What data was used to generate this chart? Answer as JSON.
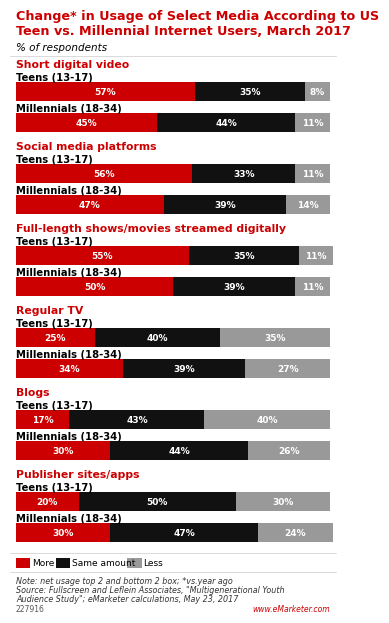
{
  "title_line1": "Change* in Usage of Select Media According to US",
  "title_line2": "Teen vs. Millennial Internet Users, March 2017",
  "subtitle": "% of respondents",
  "title_color": "#cc0000",
  "colors": {
    "more": "#cc0000",
    "same": "#111111",
    "less": "#999999"
  },
  "categories": [
    {
      "name": "Short digital video",
      "rows": [
        {
          "label": "Teens (13-17)",
          "more": 57,
          "same": 35,
          "less": 8
        },
        {
          "label": "Millennials (18-34)",
          "more": 45,
          "same": 44,
          "less": 11
        }
      ]
    },
    {
      "name": "Social media platforms",
      "rows": [
        {
          "label": "Teens (13-17)",
          "more": 56,
          "same": 33,
          "less": 11
        },
        {
          "label": "Millennials (18-34)",
          "more": 47,
          "same": 39,
          "less": 14
        }
      ]
    },
    {
      "name": "Full-length shows/movies streamed digitally",
      "rows": [
        {
          "label": "Teens (13-17)",
          "more": 55,
          "same": 35,
          "less": 11
        },
        {
          "label": "Millennials (18-34)",
          "more": 50,
          "same": 39,
          "less": 11
        }
      ]
    },
    {
      "name": "Regular TV",
      "rows": [
        {
          "label": "Teens (13-17)",
          "more": 25,
          "same": 40,
          "less": 35
        },
        {
          "label": "Millennials (18-34)",
          "more": 34,
          "same": 39,
          "less": 27
        }
      ]
    },
    {
      "name": "Blogs",
      "rows": [
        {
          "label": "Teens (13-17)",
          "more": 17,
          "same": 43,
          "less": 40
        },
        {
          "label": "Millennials (18-34)",
          "more": 30,
          "same": 44,
          "less": 26
        }
      ]
    },
    {
      "name": "Publisher sites/apps",
      "rows": [
        {
          "label": "Teens (13-17)",
          "more": 20,
          "same": 50,
          "less": 30
        },
        {
          "label": "Millennials (18-34)",
          "more": 30,
          "same": 47,
          "less": 24
        }
      ]
    }
  ],
  "legend": [
    "More",
    "Same amount",
    "Less"
  ],
  "note_line1": "Note: net usage top 2 and bottom 2 box; *vs.year ago",
  "note_line2": "Source: Fullscreen and Leflein Associates, \"Multigenerational Youth",
  "note_line3": "Audience Study\"; eMarketer calculations, May 23, 2017",
  "chart_id": "227916",
  "watermark": "www.eMarketer.com"
}
